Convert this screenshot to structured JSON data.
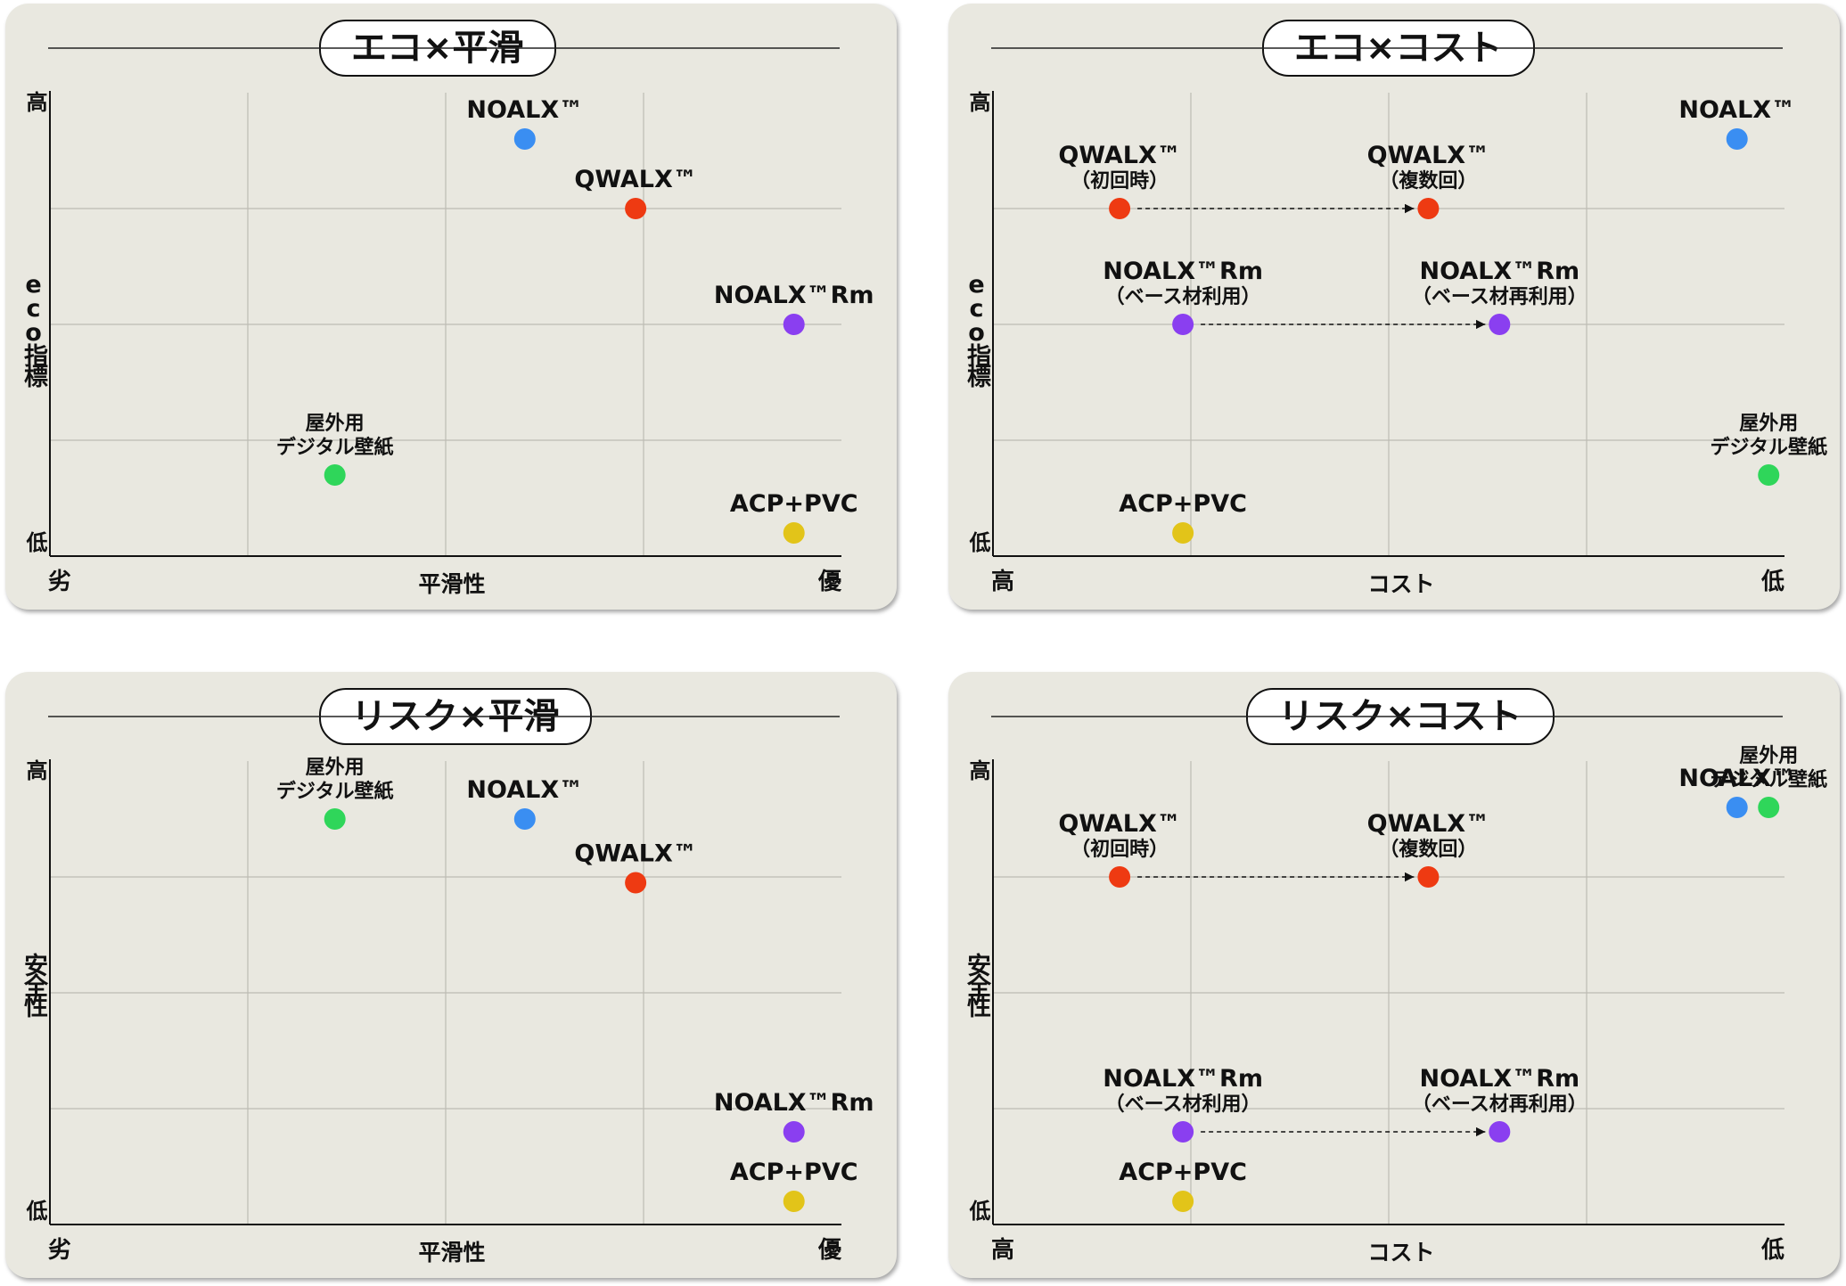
{
  "colors": {
    "noalx": "#3a8ef2",
    "qwalx": "#ee3a12",
    "noalx_rm": "#8a3ff0",
    "outdoor": "#2fd65a",
    "acp": "#e2c419"
  },
  "chart_data": [
    {
      "type": "scatter",
      "title": "エコ×平滑",
      "xlabel": "平滑性",
      "ylabel": "eco指標",
      "x_low_label": "劣",
      "x_high_label": "優",
      "y_high_label": "高",
      "y_low_label": "低",
      "points": [
        {
          "label": [
            "NOALX™"
          ],
          "x": 3.0,
          "y": 3.6,
          "color": "noalx"
        },
        {
          "label": [
            "QWALX™"
          ],
          "x": 3.7,
          "y": 3.0,
          "color": "qwalx"
        },
        {
          "label": [
            "NOALX™Rm"
          ],
          "x": 4.7,
          "y": 2.0,
          "color": "noalx_rm"
        },
        {
          "label": [
            "屋外用",
            "デジタル壁紙"
          ],
          "x": 1.8,
          "y": 0.7,
          "color": "outdoor"
        },
        {
          "label": [
            "ACP+PVC"
          ],
          "x": 4.7,
          "y": 0.2,
          "color": "acp"
        }
      ],
      "arrows": []
    },
    {
      "type": "scatter",
      "title": "エコ×コスト",
      "xlabel": "コスト",
      "ylabel": "eco指標",
      "x_low_label": "高",
      "x_high_label": "低",
      "y_high_label": "高",
      "y_low_label": "低",
      "points": [
        {
          "label": [
            "NOALX™"
          ],
          "x": 4.7,
          "y": 3.6,
          "color": "noalx"
        },
        {
          "label": [
            "QWALX™",
            "（初回時）"
          ],
          "x": 0.8,
          "y": 3.0,
          "color": "qwalx"
        },
        {
          "label": [
            "QWALX™",
            "（複数回）"
          ],
          "x": 2.75,
          "y": 3.0,
          "color": "qwalx"
        },
        {
          "label": [
            "NOALX™Rm",
            "（ベース材利用）"
          ],
          "x": 1.2,
          "y": 2.0,
          "color": "noalx_rm"
        },
        {
          "label": [
            "NOALX™Rm",
            "（ベース材再利用）"
          ],
          "x": 3.2,
          "y": 2.0,
          "color": "noalx_rm"
        },
        {
          "label": [
            "屋外用",
            "デジタル壁紙"
          ],
          "x": 4.9,
          "y": 0.7,
          "color": "outdoor"
        },
        {
          "label": [
            "ACP+PVC"
          ],
          "x": 1.2,
          "y": 0.2,
          "color": "acp"
        }
      ],
      "arrows": [
        {
          "from": [
            0.8,
            3.0
          ],
          "to": [
            2.75,
            3.0
          ]
        },
        {
          "from": [
            1.2,
            2.0
          ],
          "to": [
            3.2,
            2.0
          ]
        }
      ]
    },
    {
      "type": "scatter",
      "title": "リスク×平滑",
      "xlabel": "平滑性",
      "ylabel": "安全性",
      "x_low_label": "劣",
      "x_high_label": "優",
      "y_high_label": "高",
      "y_low_label": "低",
      "points": [
        {
          "label": [
            "屋外用",
            "デジタル壁紙"
          ],
          "x": 1.8,
          "y": 3.5,
          "color": "outdoor"
        },
        {
          "label": [
            "NOALX™"
          ],
          "x": 3.0,
          "y": 3.5,
          "color": "noalx"
        },
        {
          "label": [
            "QWALX™"
          ],
          "x": 3.7,
          "y": 2.95,
          "color": "qwalx"
        },
        {
          "label": [
            "NOALX™Rm"
          ],
          "x": 4.7,
          "y": 0.8,
          "color": "noalx_rm"
        },
        {
          "label": [
            "ACP+PVC"
          ],
          "x": 4.7,
          "y": 0.2,
          "color": "acp"
        }
      ],
      "arrows": []
    },
    {
      "type": "scatter",
      "title": "リスク×コスト",
      "xlabel": "コスト",
      "ylabel": "安全性",
      "x_low_label": "高",
      "x_high_label": "低",
      "y_high_label": "高",
      "y_low_label": "低",
      "points": [
        {
          "label": [
            "NOALX™"
          ],
          "x": 4.7,
          "y": 3.6,
          "color": "noalx"
        },
        {
          "label": [
            "屋外用",
            "デジタル壁紙"
          ],
          "x": 4.9,
          "y": 3.6,
          "color": "outdoor"
        },
        {
          "label": [
            "QWALX™",
            "（初回時）"
          ],
          "x": 0.8,
          "y": 3.0,
          "color": "qwalx"
        },
        {
          "label": [
            "QWALX™",
            "（複数回）"
          ],
          "x": 2.75,
          "y": 3.0,
          "color": "qwalx"
        },
        {
          "label": [
            "NOALX™Rm",
            "（ベース材利用）"
          ],
          "x": 1.2,
          "y": 0.8,
          "color": "noalx_rm"
        },
        {
          "label": [
            "NOALX™Rm",
            "（ベース材再利用）"
          ],
          "x": 3.2,
          "y": 0.8,
          "color": "noalx_rm"
        },
        {
          "label": [
            "ACP+PVC"
          ],
          "x": 1.2,
          "y": 0.2,
          "color": "acp"
        }
      ],
      "arrows": [
        {
          "from": [
            0.8,
            3.0
          ],
          "to": [
            2.75,
            3.0
          ]
        },
        {
          "from": [
            1.2,
            0.8
          ],
          "to": [
            3.2,
            0.8
          ]
        }
      ]
    }
  ]
}
